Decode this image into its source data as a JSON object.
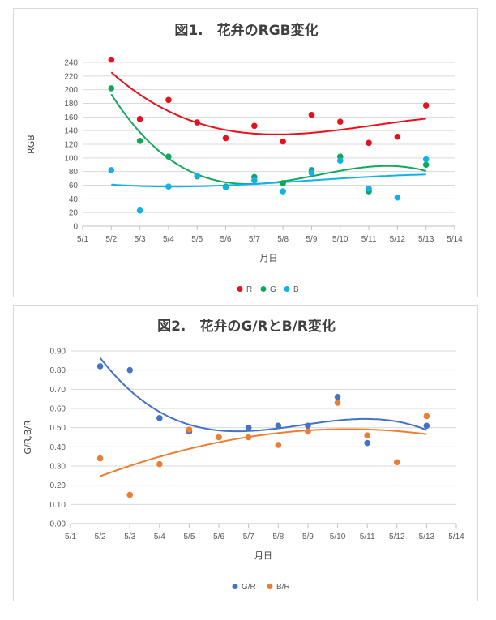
{
  "chart_data": [
    {
      "type": "scatter",
      "title": "図1.　花弁のRGB変化",
      "xlabel": "月日",
      "ylabel": "RGB",
      "xticks": [
        "5/1",
        "5/2",
        "5/3",
        "5/4",
        "5/5",
        "5/6",
        "5/7",
        "5/8",
        "5/9",
        "5/10",
        "5/11",
        "5/12",
        "5/13",
        "5/14"
      ],
      "ylim": [
        0,
        240
      ],
      "yticks": [
        "0",
        "20",
        "40",
        "60",
        "80",
        "100",
        "120",
        "140",
        "160",
        "180",
        "200",
        "220",
        "240"
      ],
      "grid": "horizontal",
      "legend": "bottom",
      "trendline": "polynomial",
      "series": [
        {
          "name": "R",
          "color": "#e8111b",
          "x": [
            2,
            3,
            4,
            5,
            6,
            7,
            8,
            9,
            10,
            11,
            12,
            13
          ],
          "values": [
            244,
            157,
            185,
            152,
            129,
            147,
            124,
            163,
            153,
            122,
            131,
            177
          ]
        },
        {
          "name": "G",
          "color": "#13a75a",
          "x": [
            2,
            3,
            4,
            5,
            6,
            7,
            8,
            9,
            10,
            11,
            12,
            13
          ],
          "values": [
            202,
            125,
            102,
            73,
            58,
            72,
            63,
            82,
            102,
            51,
            null,
            90
          ]
        },
        {
          "name": "B",
          "color": "#13b2e6",
          "x": [
            2,
            3,
            4,
            5,
            6,
            7,
            8,
            9,
            10,
            11,
            12,
            13
          ],
          "values": [
            82,
            23,
            58,
            74,
            57,
            67,
            51,
            78,
            96,
            55,
            42,
            98
          ]
        }
      ]
    },
    {
      "type": "scatter",
      "title": "図2.　花弁のG/RとB/R変化",
      "xlabel": "月日",
      "ylabel": "G/R,B/R",
      "xticks": [
        "5/1",
        "5/2",
        "5/3",
        "5/4",
        "5/5",
        "5/6",
        "5/7",
        "5/8",
        "5/9",
        "5/10",
        "5/11",
        "5/12",
        "5/13",
        "5/14"
      ],
      "ylim": [
        0,
        0.9
      ],
      "yticks": [
        "0.00",
        "0.10",
        "0.20",
        "0.30",
        "0.40",
        "0.50",
        "0.60",
        "0.70",
        "0.80",
        "0.90"
      ],
      "grid": "horizontal",
      "legend": "bottom",
      "trendline": "polynomial",
      "series": [
        {
          "name": "G/R",
          "color": "#4472c4",
          "x": [
            2,
            3,
            4,
            5,
            6,
            7,
            8,
            9,
            10,
            11,
            12,
            13
          ],
          "values": [
            0.82,
            0.8,
            0.55,
            0.48,
            0.45,
            0.5,
            0.51,
            0.51,
            0.66,
            0.42,
            null,
            0.51
          ]
        },
        {
          "name": "B/R",
          "color": "#ed7d31",
          "x": [
            2,
            3,
            4,
            5,
            6,
            7,
            8,
            9,
            10,
            11,
            12,
            13
          ],
          "values": [
            0.34,
            0.15,
            0.31,
            0.49,
            0.45,
            0.45,
            0.41,
            0.48,
            0.63,
            0.46,
            0.32,
            0.56
          ]
        }
      ]
    }
  ]
}
